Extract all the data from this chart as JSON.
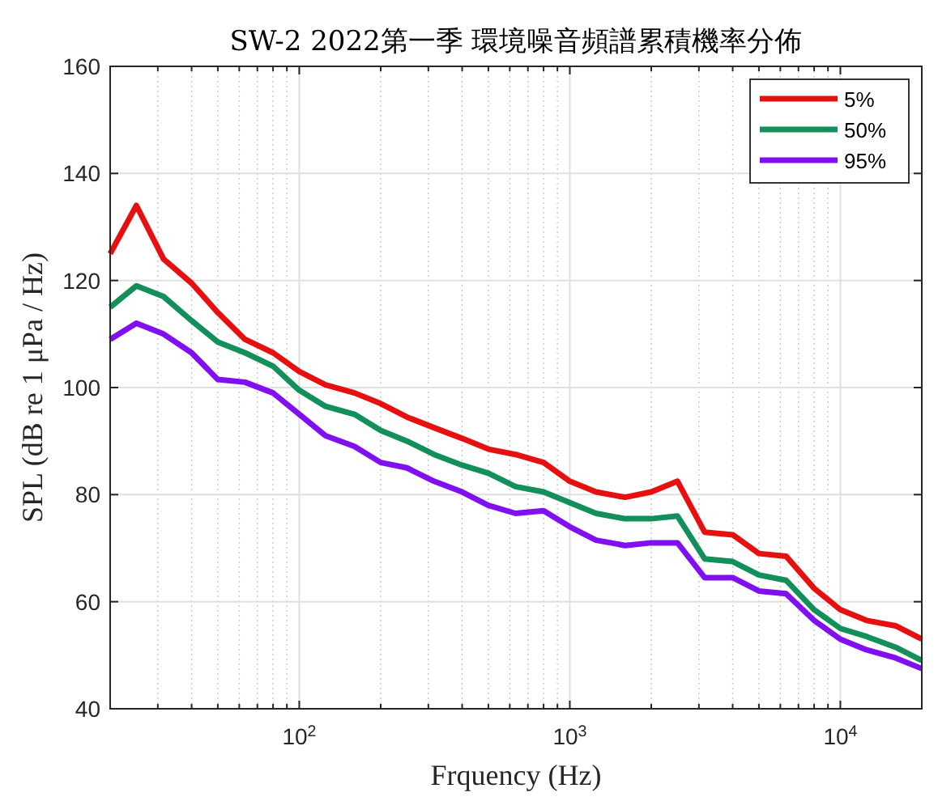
{
  "chart_data": {
    "type": "line",
    "title": "SW-2  2022第一季 環境噪音頻譜累積機率分佈",
    "xlabel": "Frquency (Hz)",
    "ylabel": "SPL (dB re 1 μPa / Hz)",
    "log": "x",
    "grid": true,
    "legend": "top right",
    "line_style": "solid",
    "marker": "none",
    "x": [
      20,
      25,
      31.5,
      40,
      50,
      63,
      80,
      100,
      125,
      160,
      200,
      250,
      315,
      400,
      500,
      630,
      800,
      1000,
      1250,
      1600,
      2000,
      2500,
      3150,
      4000,
      5000,
      6300,
      8000,
      10000,
      12500,
      16000,
      20000
    ],
    "xlim": [
      20,
      20000
    ],
    "xticks": [
      {
        "value": 100,
        "label": "10$^{2}$"
      },
      {
        "value": 1000,
        "label": "10$^{3}$"
      },
      {
        "value": 10000,
        "label": "10$^{4}$"
      }
    ],
    "ylim": [
      40,
      160
    ],
    "yticks": [
      40,
      60,
      80,
      100,
      120,
      140,
      160
    ],
    "series": [
      {
        "name": "5%",
        "color": "#e61010",
        "values": [
          125,
          134,
          124,
          119.5,
          114,
          109,
          106.5,
          103,
          100.5,
          99,
          97,
          94.5,
          92.5,
          90.5,
          88.5,
          87.5,
          86,
          82.5,
          80.5,
          79.5,
          80.5,
          82.5,
          73,
          72.5,
          69,
          68.5,
          62.5,
          58.5,
          56.5,
          55.5,
          53
        ]
      },
      {
        "name": "50%",
        "color": "#128f5a",
        "values": [
          115,
          119,
          117,
          112.5,
          108.5,
          106.5,
          104,
          99.5,
          96.5,
          95,
          92,
          90,
          87.5,
          85.5,
          84,
          81.5,
          80.5,
          78.5,
          76.5,
          75.5,
          75.5,
          76,
          68,
          67.5,
          65,
          64,
          58.5,
          55,
          53.5,
          51.5,
          49
        ]
      },
      {
        "name": "95%",
        "color": "#8010f0",
        "values": [
          109,
          112,
          110,
          106.5,
          101.5,
          101,
          99,
          95,
          91,
          89,
          86,
          85,
          82.5,
          80.5,
          78,
          76.5,
          77,
          74,
          71.5,
          70.5,
          71,
          71,
          64.5,
          64.5,
          62,
          61.5,
          56.5,
          53,
          51,
          49.5,
          47.5
        ]
      }
    ]
  }
}
